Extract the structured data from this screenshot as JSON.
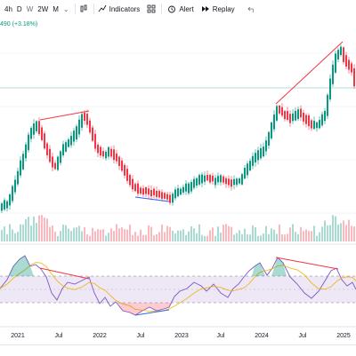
{
  "toolbar": {
    "timeframes": [
      "4h",
      "D",
      "W",
      "2W",
      "M"
    ],
    "indicators_label": "Indicators",
    "alert_label": "Alert",
    "replay_label": "Replay"
  },
  "legend": {
    "price_change": "490 (+3.18%)"
  },
  "time_axis": {
    "labels": [
      "2021",
      "Jul",
      "2022",
      "Jul",
      "2023",
      "Jul",
      "2024",
      "Jul",
      "2025"
    ]
  },
  "colors": {
    "up": "#089981",
    "down": "#f23645",
    "rsi_line": "#7e57c2",
    "rsi_ma": "#f0b400",
    "rsi_band": "#ede7f6",
    "divergence_bear": "#f23645",
    "divergence_bull": "#2962ff"
  },
  "icons": [
    "candles-icon",
    "indicators-icon",
    "templates-icon",
    "alert-icon",
    "replay-icon",
    "undo-icon"
  ]
}
